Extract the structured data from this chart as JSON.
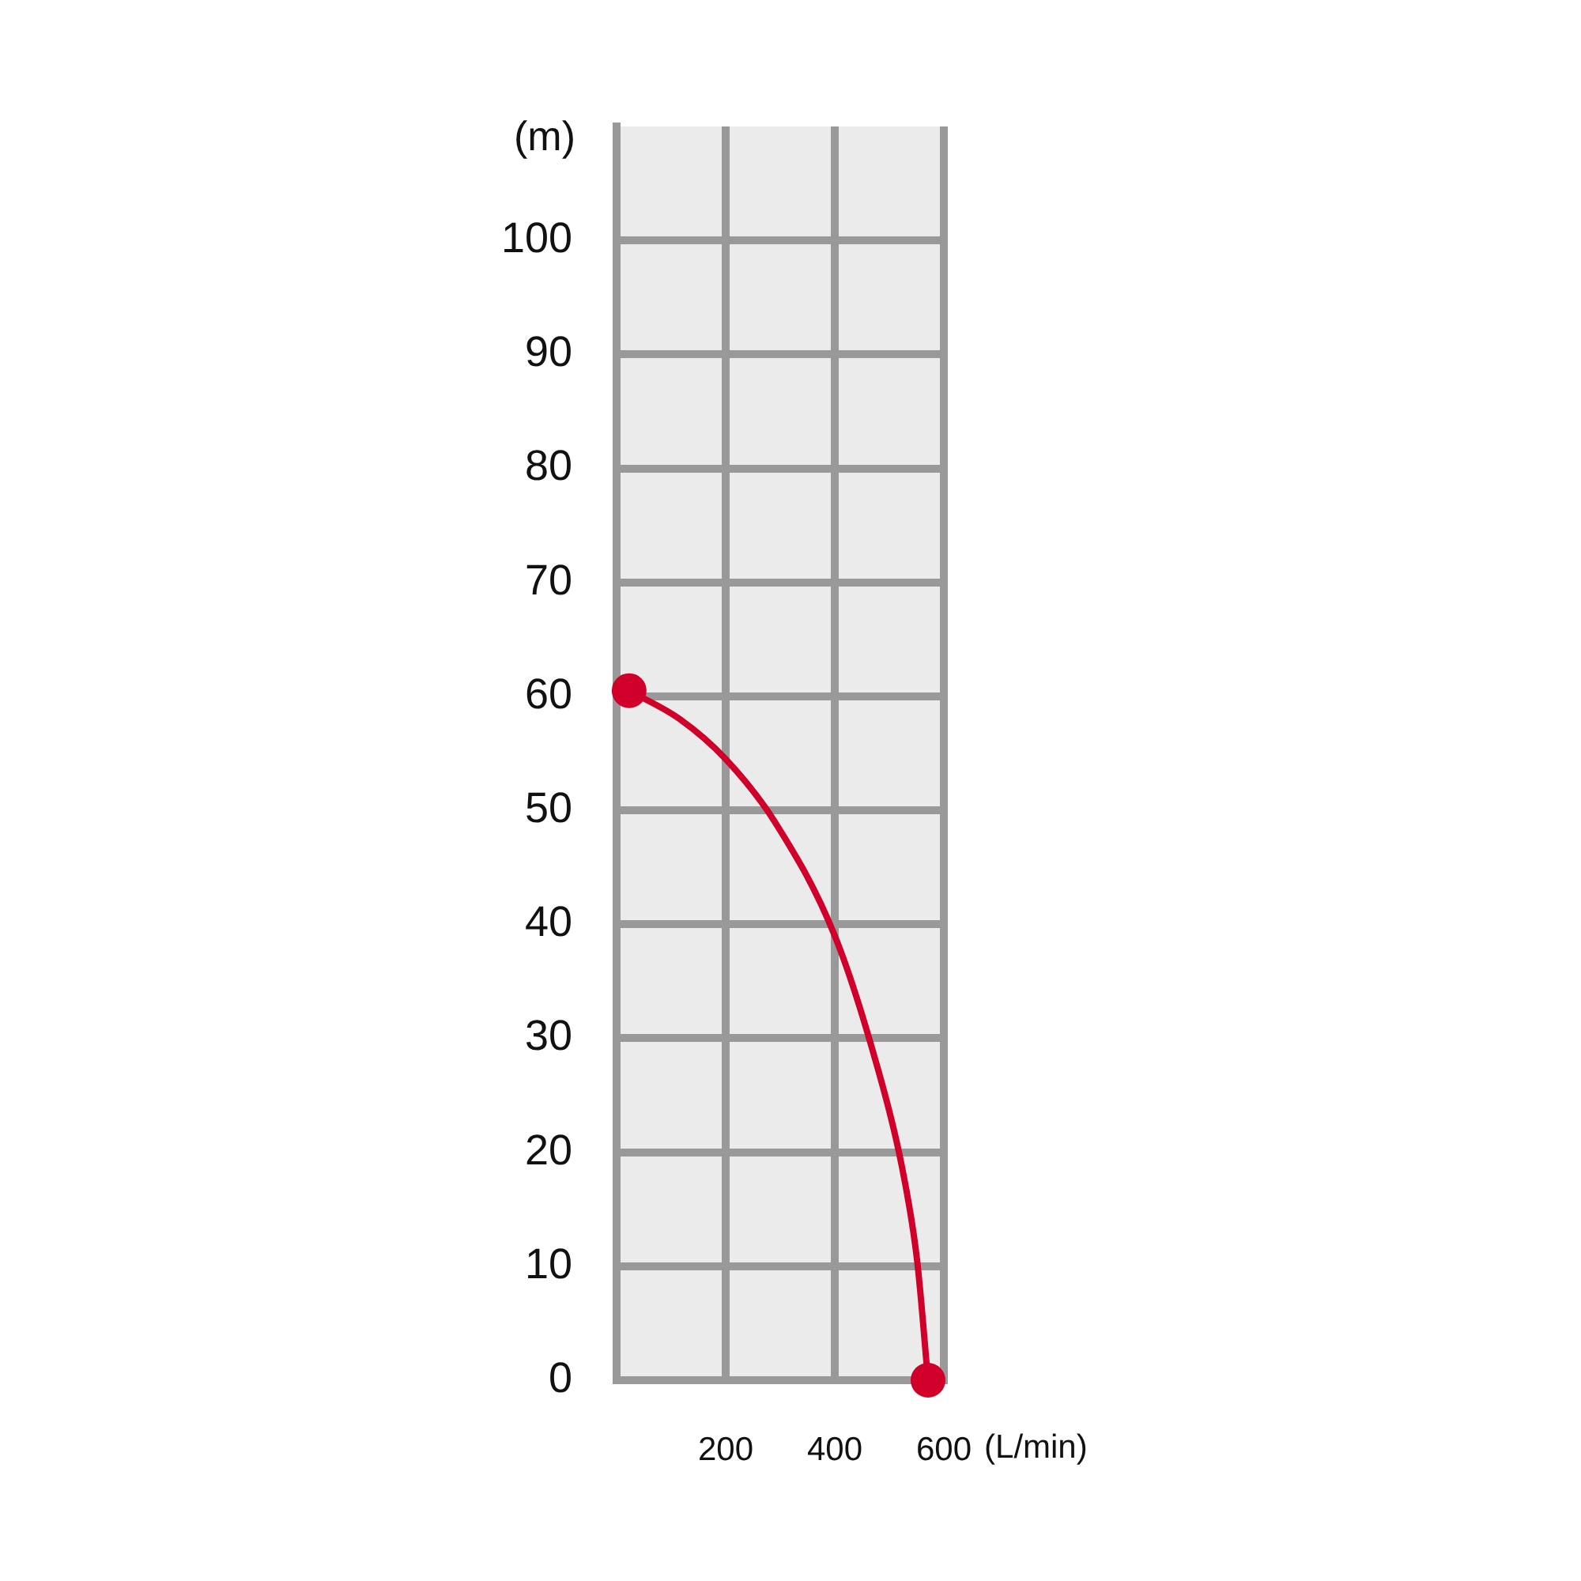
{
  "chart_data": {
    "type": "line",
    "xlabel": "(L/min)",
    "ylabel": "(m)",
    "xlim": [
      0,
      600
    ],
    "xticks": [
      200,
      400,
      600
    ],
    "ylim": [
      0,
      110
    ],
    "yticks": [
      0,
      10,
      20,
      30,
      40,
      50,
      60,
      70,
      80,
      90,
      100
    ],
    "grid": true,
    "legend": false,
    "series": [
      {
        "type": "line",
        "color": "#d0002a",
        "marker": "none",
        "x": [
          23,
          116,
          200,
          290,
          400,
          472,
          522,
          551,
          571
        ],
        "values": [
          60.5,
          58,
          54.5,
          49,
          39,
          28.5,
          19,
          10.5,
          0
        ]
      },
      {
        "type": "scatter",
        "color": "#d0002a",
        "marker": "circle",
        "x": [
          23,
          571
        ],
        "values": [
          60.5,
          0
        ]
      }
    ]
  }
}
